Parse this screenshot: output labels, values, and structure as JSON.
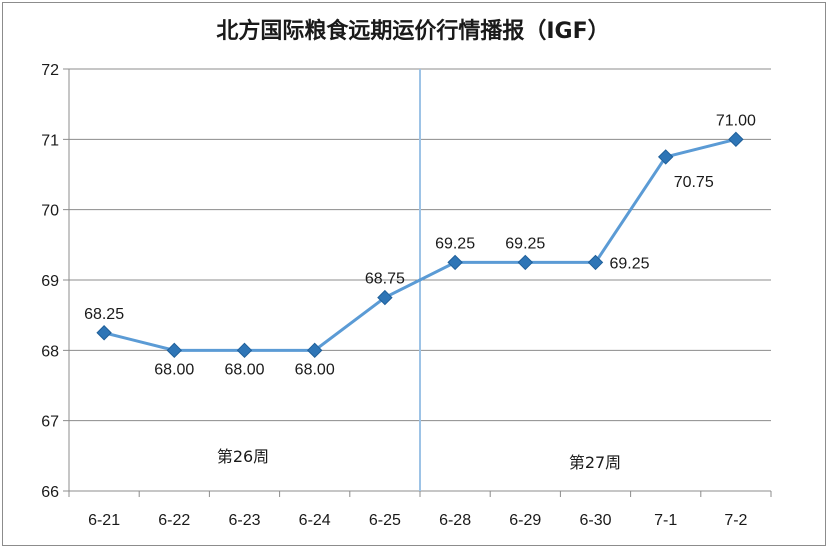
{
  "chart_data": {
    "type": "line",
    "title": "北方国际粮食远期运价行情播报（IGF）",
    "categories": [
      "6-21",
      "6-22",
      "6-23",
      "6-24",
      "6-25",
      "6-28",
      "6-29",
      "6-30",
      "7-1",
      "7-2"
    ],
    "series": [
      {
        "values": [
          68.25,
          68.0,
          68.0,
          68.0,
          68.75,
          69.25,
          69.25,
          69.25,
          70.75,
          71.0
        ],
        "labels": [
          "68.25",
          "68.00",
          "68.00",
          "68.00",
          "68.75",
          "69.25",
          "69.25",
          "69.25",
          "70.75",
          "71.00"
        ]
      }
    ],
    "ylim": [
      66,
      72
    ],
    "yticks": [
      "66",
      "67",
      "68",
      "69",
      "70",
      "71",
      "72"
    ],
    "grid": true,
    "week_labels": [
      "第26周",
      "第27周"
    ],
    "colors": {
      "line": "#5b9bd5",
      "marker": "#2e75b6",
      "divider": "#9dc3e6",
      "grid": "#8c8c8c"
    }
  }
}
